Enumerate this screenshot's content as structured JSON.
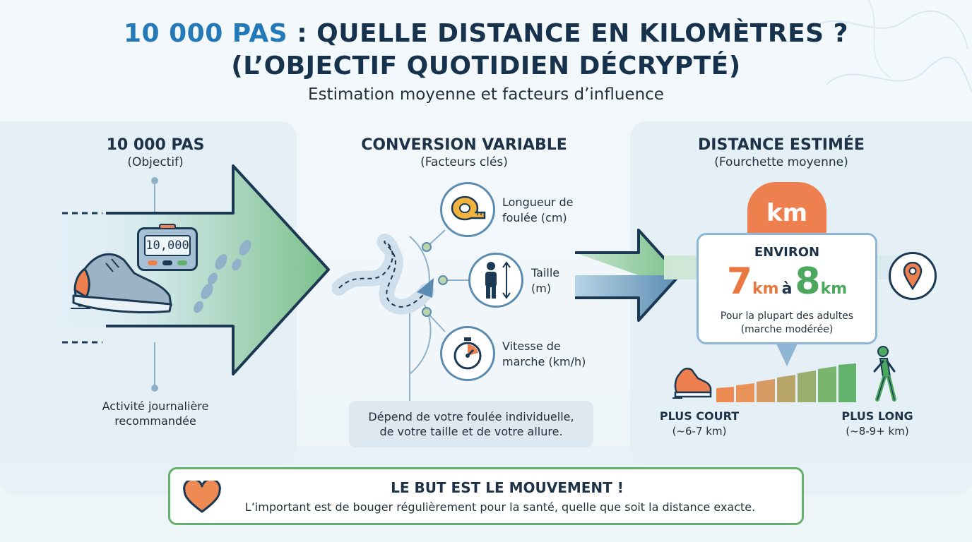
{
  "header": {
    "title_accent": "10 000 PAS",
    "title_line1_rest": " : QUELLE DISTANCE EN KILOMÈTRES ?",
    "title_line2": "(L’OBJECTIF QUOTIDIEN DÉCRYPTÉ)",
    "subtitle": "Estimation moyenne et facteurs d’influence"
  },
  "left": {
    "title": "10 000 PAS",
    "subtitle": "(Objectif)",
    "pedometer_value": "10,000",
    "caption_line1": "Activité journalière",
    "caption_line2": "recommandée"
  },
  "middle": {
    "title": "CONVERSION VARIABLE",
    "subtitle": "(Facteurs clés)",
    "factors": [
      {
        "icon": "tape-measure-icon",
        "line1": "Longueur de",
        "line2": "foulée (cm)"
      },
      {
        "icon": "person-height-icon",
        "line1": "Taille",
        "line2": "(m)"
      },
      {
        "icon": "stopwatch-icon",
        "line1": "Vitesse de",
        "line2": "marche (km/h)"
      }
    ],
    "note_line1": "Dépend de votre foulée individuelle,",
    "note_line2": "de votre taille et de votre allure."
  },
  "right": {
    "title": "DISTANCE ESTIMÉE",
    "subtitle": "(Fourchette moyenne)",
    "badge": "km",
    "environ": "ENVIRON",
    "min_value": "7",
    "max_value": "8",
    "unit": "km",
    "separator": "à",
    "note_line1": "Pour la plupart des adultes",
    "note_line2": "(marche modérée)",
    "short_label": "PLUS COURT",
    "short_range": "(~6-7 km)",
    "long_label": "PLUS LONG",
    "long_range": "(~8-9+ km)"
  },
  "banner": {
    "title": "LE BUT EST LE MOUVEMENT !",
    "text": "L’important est de bouger régulièrement pour la santé, quelle que soit la distance exacte."
  },
  "colors": {
    "accent_blue": "#2479b8",
    "orange": "#e8783f",
    "green": "#4ba85d",
    "navy": "#17324d"
  }
}
